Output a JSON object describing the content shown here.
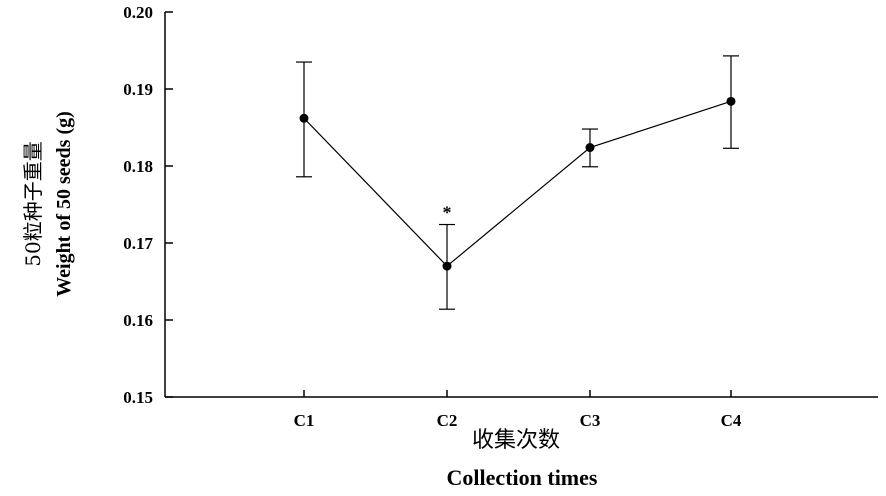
{
  "chart_data": {
    "type": "line",
    "title": "",
    "categories": [
      "C1",
      "C2",
      "C3",
      "C4"
    ],
    "series": [
      {
        "values": [
          0.1862,
          0.167,
          0.1824,
          0.1884
        ],
        "error_low": [
          0.1786,
          0.1614,
          0.1799,
          0.1823
        ],
        "error_high": [
          0.1935,
          0.1724,
          0.1848,
          0.1943
        ],
        "annotations": [
          "",
          "*",
          "",
          ""
        ]
      }
    ],
    "xlabel_cn": "收集次数",
    "xlabel": "Collection times",
    "ylabel_cn": "50粒种子重量",
    "ylabel": "Weight of 50 seeds (g)",
    "ylim": [
      0.15,
      0.2
    ],
    "yticks": [
      "0.15",
      "0.16",
      "0.17",
      "0.18",
      "0.19",
      "0.20"
    ],
    "grid": false,
    "legend": "none",
    "colors": {
      "line": "#000000",
      "axis": "#000000"
    }
  }
}
